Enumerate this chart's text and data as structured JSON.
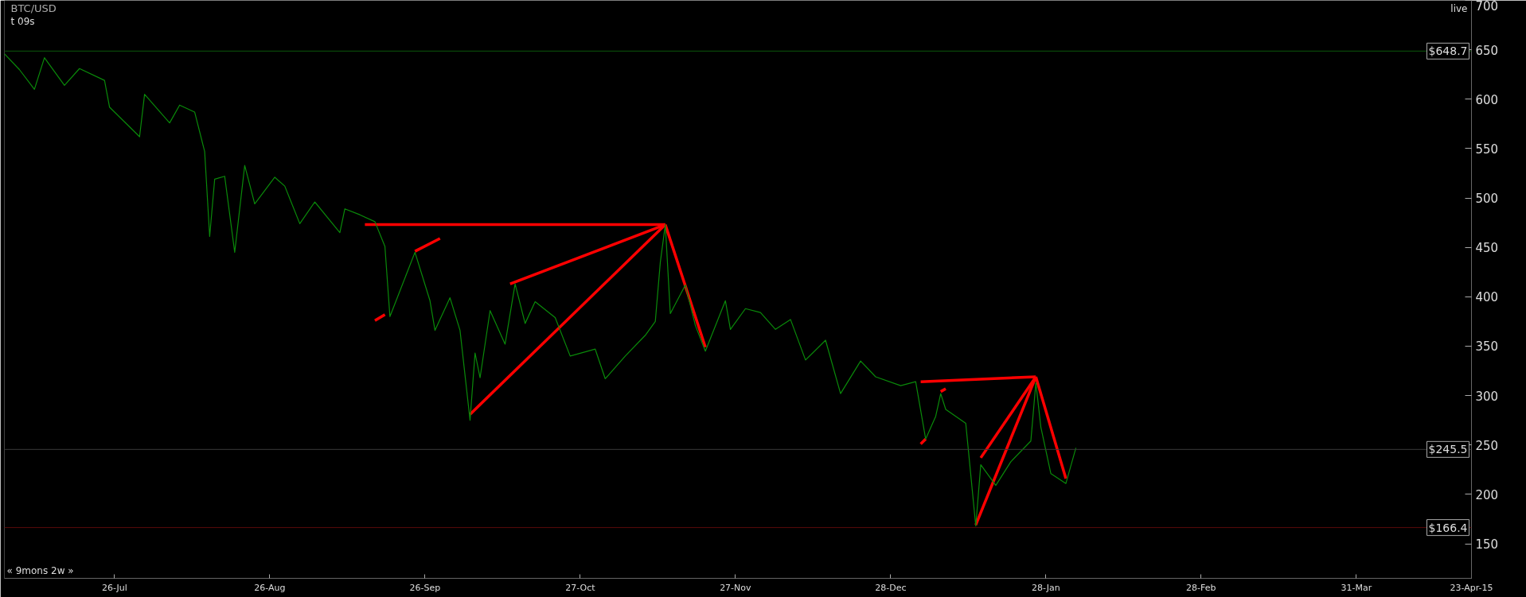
{
  "chart_data": {
    "type": "line",
    "title": "BTC/USD",
    "annotations": [
      "t 09s",
      "live",
      "« 9mons 2w »"
    ],
    "xlim": [
      "2014-07-04",
      "2015-04-23"
    ],
    "xticks": [
      {
        "value": "2014-07-26",
        "label": "26-Jul"
      },
      {
        "value": "2014-08-26",
        "label": "26-Aug"
      },
      {
        "value": "2014-09-26",
        "label": "26-Sep"
      },
      {
        "value": "2014-10-27",
        "label": "27-Oct"
      },
      {
        "value": "2014-11-27",
        "label": "27-Nov"
      },
      {
        "value": "2014-12-28",
        "label": "28-Dec"
      },
      {
        "value": "2015-01-28",
        "label": "28-Jan"
      },
      {
        "value": "2015-02-28",
        "label": "28-Feb"
      },
      {
        "value": "2015-03-31",
        "label": "31-Mar"
      },
      {
        "value": "2015-04-23",
        "label": "23-Apr-15"
      }
    ],
    "ylim": [
      115,
      700
    ],
    "yticks": [
      150,
      200,
      250,
      300,
      350,
      400,
      450,
      500,
      550,
      600,
      650,
      700
    ],
    "grid": false,
    "marker": "none",
    "line_style": "solid",
    "ref_lines": [
      {
        "axis": "y",
        "value": 648.7,
        "label": "$648.7",
        "color": "#0b5a0b"
      },
      {
        "axis": "y",
        "value": 245.5,
        "label": "$245.5",
        "color": "#3a3a3a"
      },
      {
        "axis": "y",
        "value": 166.4,
        "label": "$166.4",
        "color": "#5a0b0b"
      }
    ],
    "series": [
      {
        "color": "#0a8a0a",
        "x": [
          "2014-07-04",
          "2014-07-07",
          "2014-07-10",
          "2014-07-12",
          "2014-07-16",
          "2014-07-19",
          "2014-07-24",
          "2014-07-25",
          "2014-07-31",
          "2014-08-01",
          "2014-08-06",
          "2014-08-08",
          "2014-08-11",
          "2014-08-13",
          "2014-08-14",
          "2014-08-15",
          "2014-08-17",
          "2014-08-19",
          "2014-08-21",
          "2014-08-23",
          "2014-08-27",
          "2014-08-29",
          "2014-09-01",
          "2014-09-04",
          "2014-09-09",
          "2014-09-10",
          "2014-09-13",
          "2014-09-16",
          "2014-09-18",
          "2014-09-19",
          "2014-09-24",
          "2014-09-27",
          "2014-09-28",
          "2014-10-01",
          "2014-10-03",
          "2014-10-05",
          "2014-10-06",
          "2014-10-07",
          "2014-10-09",
          "2014-10-12",
          "2014-10-14",
          "2014-10-16",
          "2014-10-18",
          "2014-10-22",
          "2014-10-25",
          "2014-10-30",
          "2014-11-01",
          "2014-11-05",
          "2014-11-09",
          "2014-11-11",
          "2014-11-12",
          "2014-11-13",
          "2014-11-14",
          "2014-11-17",
          "2014-11-19",
          "2014-11-21",
          "2014-11-25",
          "2014-11-26",
          "2014-11-29",
          "2014-12-02",
          "2014-12-05",
          "2014-12-08",
          "2014-12-11",
          "2014-12-15",
          "2014-12-18",
          "2014-12-22",
          "2014-12-25",
          "2014-12-30",
          "2015-01-02",
          "2015-01-04",
          "2015-01-06",
          "2015-01-07",
          "2015-01-08",
          "2015-01-12",
          "2015-01-14",
          "2015-01-15",
          "2015-01-18",
          "2015-01-21",
          "2015-01-25",
          "2015-01-26",
          "2015-01-27",
          "2015-01-29",
          "2015-02-01",
          "2015-02-03"
        ],
        "values": [
          646,
          630,
          610,
          642,
          614,
          631,
          619,
          592,
          562,
          605,
          576,
          594,
          587,
          547,
          461,
          519,
          522,
          445,
          533,
          494,
          521,
          512,
          474,
          496,
          465,
          489,
          483,
          476,
          451,
          380,
          445,
          396,
          366,
          399,
          366,
          275,
          343,
          318,
          386,
          352,
          413,
          373,
          395,
          379,
          340,
          347,
          317,
          340,
          361,
          375,
          435,
          473,
          383,
          412,
          371,
          345,
          396,
          367,
          388,
          384,
          367,
          377,
          336,
          356,
          302,
          335,
          319,
          310,
          314,
          256,
          279,
          302,
          286,
          272,
          168,
          230,
          209,
          233,
          254,
          313,
          268,
          221,
          211,
          247
        ]
      },
      {
        "color": "#ff0000",
        "x": [
          "2014-11-13",
          "2014-09-14"
        ],
        "values": [
          473,
          473
        ]
      },
      {
        "color": "#ff0000",
        "x": [
          "2014-11-13",
          "2014-10-13"
        ],
        "values": [
          473,
          413
        ]
      },
      {
        "color": "#ff0000",
        "x": [
          "2014-11-13",
          "2014-10-05"
        ],
        "values": [
          473,
          281
        ]
      },
      {
        "color": "#ff0000",
        "x": [
          "2014-11-13",
          "2014-11-21"
        ],
        "values": [
          473,
          349
        ]
      },
      {
        "color": "#ff0000",
        "x": [
          "2014-09-29",
          "2014-09-24"
        ],
        "values": [
          459,
          446
        ]
      },
      {
        "color": "#ff0000",
        "x": [
          "2014-09-16",
          "2014-09-18"
        ],
        "values": [
          376,
          382
        ]
      },
      {
        "color": "#ff0000",
        "x": [
          "2015-01-26",
          "2015-01-03"
        ],
        "values": [
          319,
          314
        ]
      },
      {
        "color": "#ff0000",
        "x": [
          "2015-01-26",
          "2015-01-15"
        ],
        "values": [
          319,
          237
        ]
      },
      {
        "color": "#ff0000",
        "x": [
          "2015-01-26",
          "2015-01-14"
        ],
        "values": [
          319,
          169
        ]
      },
      {
        "color": "#ff0000",
        "x": [
          "2015-01-26",
          "2015-02-01"
        ],
        "values": [
          319,
          216
        ]
      },
      {
        "color": "#ff0000",
        "x": [
          "2015-01-08",
          "2015-01-07"
        ],
        "values": [
          307,
          304
        ]
      },
      {
        "color": "#ff0000",
        "x": [
          "2015-01-04",
          "2015-01-03"
        ],
        "values": [
          256,
          251
        ]
      }
    ]
  }
}
